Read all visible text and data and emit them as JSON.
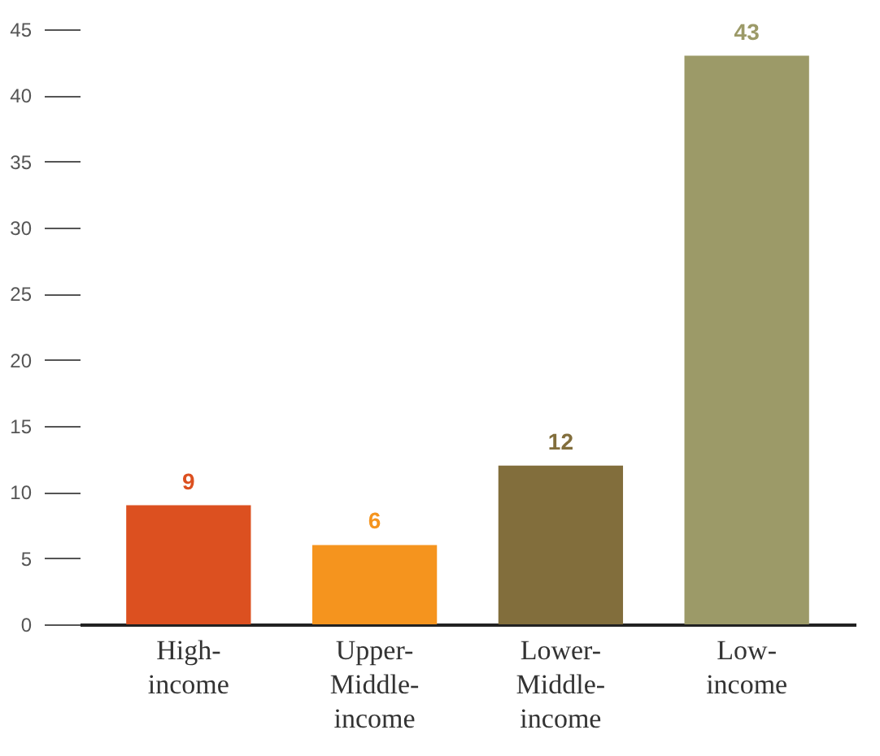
{
  "chart_data": {
    "type": "bar",
    "categories": [
      "High-income",
      "Upper-Middle-income",
      "Lower-Middle-income",
      "Low-income"
    ],
    "values": [
      9,
      6,
      12,
      43
    ],
    "colors": [
      "#dc5020",
      "#f5941e",
      "#826e3c",
      "#9c9a68"
    ],
    "ylim": [
      0,
      45
    ],
    "yticks": [
      0,
      5,
      10,
      15,
      20,
      25,
      30,
      35,
      40,
      45
    ],
    "data_labels": true,
    "grid": false
  }
}
